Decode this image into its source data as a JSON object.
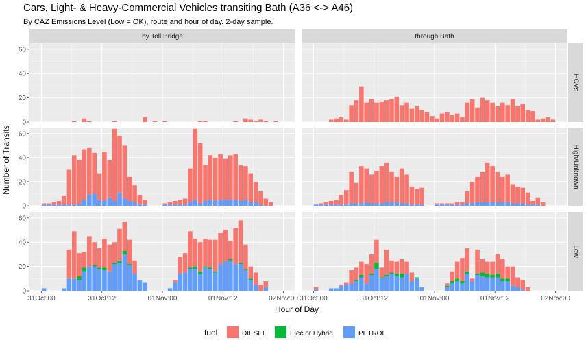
{
  "chart_data": {
    "type": "bar",
    "title": "Cars, Light- & Heavy-Commercial Vehicles transiting Bath (A36 <-> A46)",
    "subtitle": "By CAZ Emissions Level (Low = OK), route and hour of day. 2-day sample.",
    "xlabel": "Hour of Day",
    "ylabel": "Number of Transits",
    "x_ticks": [
      "31Oct:00",
      "31Oct:12",
      "01Nov:00",
      "01Nov:12",
      "02Nov:00"
    ],
    "y_ticks": [
      "0",
      "20",
      "40",
      "60"
    ],
    "ylim": [
      0,
      65
    ],
    "x_hours": 48,
    "stacked": true,
    "legend": {
      "title": "fuel",
      "position": "bottom",
      "items": [
        {
          "name": "DIESEL",
          "color": "#F8766D"
        },
        {
          "name": "Elec or Hybrid",
          "color": "#00BA38"
        },
        {
          "name": "PETROL",
          "color": "#619CFF"
        }
      ]
    },
    "columns": [
      "by Toll Bridge",
      "through Bath"
    ],
    "rows": [
      "HCVs",
      "High/Unknown",
      "Low"
    ],
    "panels": [
      {
        "row": "HCVs",
        "column": "by Toll Bridge",
        "series": [
          {
            "name": "PETROL",
            "values": [
              0,
              0,
              0,
              0,
              0,
              0,
              0,
              0,
              0,
              0,
              0,
              0,
              0,
              0,
              0,
              0,
              0,
              0,
              0,
              0,
              0,
              0,
              0,
              0,
              0,
              0,
              0,
              0,
              0,
              0,
              0,
              0,
              0,
              0,
              0,
              0,
              0,
              0,
              0,
              0,
              0,
              0,
              0,
              0,
              0,
              0,
              0,
              0
            ]
          },
          {
            "name": "Elec or Hybrid",
            "values": [
              0,
              0,
              0,
              0,
              0,
              0,
              0,
              0,
              0,
              0,
              0,
              0,
              0,
              0,
              0,
              0,
              0,
              0,
              0,
              0,
              0,
              0,
              0,
              0,
              0,
              0,
              0,
              0,
              0,
              0,
              0,
              0,
              0,
              0,
              0,
              0,
              0,
              0,
              0,
              0,
              0,
              0,
              0,
              0,
              0,
              0,
              0,
              0
            ]
          },
          {
            "name": "DIESEL",
            "values": [
              0,
              0,
              0,
              0,
              0,
              0,
              1,
              0,
              3,
              1,
              0,
              0,
              0,
              0,
              1,
              0,
              0,
              0,
              0,
              0,
              4,
              0,
              1,
              0,
              1,
              0,
              0,
              0,
              0,
              0,
              0,
              1,
              1,
              0,
              0,
              0,
              0,
              0,
              1,
              0,
              3,
              2,
              1,
              2,
              1,
              0,
              1,
              0
            ]
          }
        ]
      },
      {
        "row": "HCVs",
        "column": "through Bath",
        "series": [
          {
            "name": "PETROL",
            "values": [
              0,
              0,
              0,
              0,
              0,
              0,
              0,
              0,
              0,
              0,
              0,
              0,
              0,
              0,
              0,
              0,
              0,
              0,
              0,
              0,
              0,
              0,
              0,
              0,
              0,
              0,
              0,
              0,
              0,
              0,
              0,
              0,
              0,
              0,
              0,
              0,
              0,
              0,
              0,
              0,
              0,
              0,
              0,
              0,
              0,
              0,
              0,
              0
            ]
          },
          {
            "name": "Elec or Hybrid",
            "values": [
              0,
              0,
              0,
              0,
              0,
              0,
              0,
              0,
              0,
              0,
              0,
              0,
              0,
              0,
              0,
              0,
              0,
              0,
              0,
              0,
              0,
              0,
              0,
              0,
              0,
              0,
              0,
              0,
              0,
              0,
              0,
              0,
              0,
              0,
              0,
              0,
              0,
              0,
              0,
              0,
              0,
              0,
              0,
              0,
              0,
              0,
              0,
              0
            ]
          },
          {
            "name": "DIESEL",
            "values": [
              0,
              0,
              0,
              2,
              3,
              4,
              2,
              14,
              18,
              29,
              16,
              19,
              16,
              17,
              18,
              19,
              21,
              14,
              16,
              11,
              13,
              10,
              8,
              5,
              3,
              7,
              8,
              6,
              7,
              4,
              16,
              19,
              12,
              20,
              18,
              16,
              13,
              16,
              14,
              19,
              13,
              15,
              10,
              9,
              2,
              3,
              4,
              2
            ]
          }
        ]
      },
      {
        "row": "High/Unknown",
        "column": "by Toll Bridge",
        "series": [
          {
            "name": "PETROL",
            "values": [
              1,
              1,
              1,
              1,
              1,
              1,
              1,
              2,
              5,
              9,
              10,
              5,
              4,
              7,
              4,
              11,
              6,
              4,
              3,
              1,
              1,
              0,
              0,
              0,
              1,
              1,
              1,
              1,
              1,
              3,
              5,
              2,
              4,
              5,
              4,
              5,
              5,
              5,
              5,
              4,
              5,
              3,
              3,
              1,
              0,
              0,
              0,
              0
            ]
          },
          {
            "name": "Elec or Hybrid",
            "values": [
              0,
              0,
              0,
              0,
              0,
              0,
              0,
              0,
              0,
              0,
              0,
              0,
              0,
              0,
              0,
              0,
              0,
              0,
              0,
              0,
              0,
              0,
              0,
              0,
              0,
              0,
              0,
              0,
              0,
              0,
              0,
              0,
              0,
              0,
              0,
              0,
              0,
              0,
              0,
              0,
              0,
              0,
              0,
              0,
              0,
              0,
              0,
              0
            ]
          },
          {
            "name": "DIESEL",
            "values": [
              1,
              1,
              2,
              3,
              7,
              29,
              41,
              36,
              42,
              39,
              34,
              22,
              41,
              31,
              60,
              47,
              44,
              20,
              14,
              8,
              4,
              0,
              0,
              0,
              1,
              2,
              3,
              4,
              5,
              28,
              59,
              50,
              30,
              37,
              36,
              38,
              34,
              37,
              38,
              30,
              28,
              24,
              17,
              11,
              6,
              3,
              0,
              0
            ]
          }
        ]
      },
      {
        "row": "High/Unknown",
        "column": "through Bath",
        "series": [
          {
            "name": "PETROL",
            "values": [
              1,
              1,
              1,
              1,
              1,
              1,
              1,
              2,
              2,
              2,
              3,
              2,
              2,
              2,
              3,
              3,
              3,
              2,
              2,
              1,
              1,
              1,
              0,
              0,
              1,
              1,
              1,
              1,
              1,
              1,
              2,
              2,
              3,
              3,
              3,
              3,
              3,
              3,
              3,
              2,
              2,
              2,
              1,
              1,
              1,
              0,
              0,
              0
            ]
          },
          {
            "name": "Elec or Hybrid",
            "values": [
              0,
              0,
              0,
              0,
              0,
              0,
              0,
              0,
              0,
              0,
              0,
              0,
              0,
              0,
              0,
              0,
              0,
              0,
              0,
              0,
              0,
              0,
              0,
              0,
              0,
              0,
              0,
              0,
              0,
              0,
              0,
              0,
              0,
              0,
              0,
              0,
              0,
              0,
              0,
              0,
              0,
              0,
              0,
              0,
              0,
              0,
              0,
              0
            ]
          },
          {
            "name": "DIESEL",
            "values": [
              0,
              1,
              2,
              3,
              4,
              8,
              12,
              26,
              17,
              31,
              28,
              24,
              27,
              31,
              33,
              25,
              21,
              29,
              24,
              15,
              13,
              14,
              0,
              0,
              1,
              1,
              1,
              1,
              2,
              2,
              10,
              18,
              21,
              25,
              33,
              30,
              25,
              21,
              23,
              16,
              14,
              13,
              10,
              3,
              6,
              3,
              0,
              0
            ]
          }
        ]
      },
      {
        "row": "Low",
        "column": "by Toll Bridge",
        "series": [
          {
            "name": "PETROL",
            "values": [
              2,
              0,
              0,
              0,
              2,
              10,
              10,
              9,
              16,
              20,
              20,
              18,
              17,
              16,
              22,
              23,
              30,
              21,
              14,
              9,
              7,
              0,
              0,
              0,
              0,
              2,
              7,
              14,
              15,
              18,
              18,
              14,
              19,
              18,
              15,
              22,
              24,
              25,
              22,
              22,
              17,
              9,
              5,
              0,
              3,
              0,
              0,
              0
            ]
          },
          {
            "name": "Elec or Hybrid",
            "values": [
              0,
              0,
              0,
              0,
              0,
              0,
              0,
              3,
              3,
              0,
              1,
              1,
              2,
              0,
              1,
              2,
              3,
              1,
              0,
              0,
              0,
              0,
              0,
              0,
              0,
              0,
              0,
              0,
              0,
              1,
              2,
              2,
              1,
              1,
              1,
              0,
              0,
              1,
              0,
              1,
              1,
              1,
              0,
              0,
              0,
              0,
              0,
              0
            ]
          },
          {
            "name": "DIESEL",
            "values": [
              0,
              0,
              0,
              0,
              0,
              24,
              39,
              19,
              13,
              25,
              19,
              16,
              24,
              22,
              17,
              26,
              24,
              20,
              11,
              0,
              0,
              0,
              0,
              0,
              0,
              0,
              2,
              14,
              16,
              30,
              23,
              24,
              23,
              23,
              26,
              26,
              26,
              15,
              30,
              35,
              20,
              10,
              10,
              5,
              5,
              0,
              0,
              0
            ]
          }
        ]
      },
      {
        "row": "Low",
        "column": "through Bath",
        "series": [
          {
            "name": "PETROL",
            "values": [
              1,
              0,
              0,
              2,
              2,
              4,
              5,
              6,
              8,
              11,
              6,
              13,
              18,
              10,
              12,
              14,
              12,
              11,
              14,
              8,
              10,
              3,
              0,
              0,
              0,
              0,
              3,
              6,
              8,
              6,
              14,
              8,
              13,
              12,
              11,
              11,
              11,
              8,
              8,
              4,
              3,
              1,
              0,
              0,
              0,
              0,
              0,
              0
            ]
          },
          {
            "name": "Elec or Hybrid",
            "values": [
              0,
              0,
              0,
              0,
              0,
              0,
              0,
              0,
              1,
              2,
              0,
              1,
              5,
              1,
              1,
              1,
              2,
              3,
              0,
              0,
              1,
              0,
              0,
              0,
              0,
              0,
              1,
              2,
              2,
              2,
              2,
              0,
              1,
              3,
              3,
              2,
              3,
              2,
              2,
              0,
              0,
              0,
              0,
              0,
              0,
              0,
              0,
              0
            ]
          },
          {
            "name": "DIESEL",
            "values": [
              2,
              0,
              0,
              0,
              0,
              1,
              2,
              11,
              10,
              11,
              16,
              16,
              19,
              8,
              21,
              10,
              10,
              12,
              10,
              7,
              0,
              0,
              0,
              0,
              0,
              0,
              2,
              8,
              14,
              19,
              19,
              2,
              20,
              11,
              10,
              11,
              16,
              16,
              10,
              16,
              8,
              8,
              3,
              0,
              0,
              0,
              0,
              0
            ]
          }
        ]
      }
    ]
  }
}
